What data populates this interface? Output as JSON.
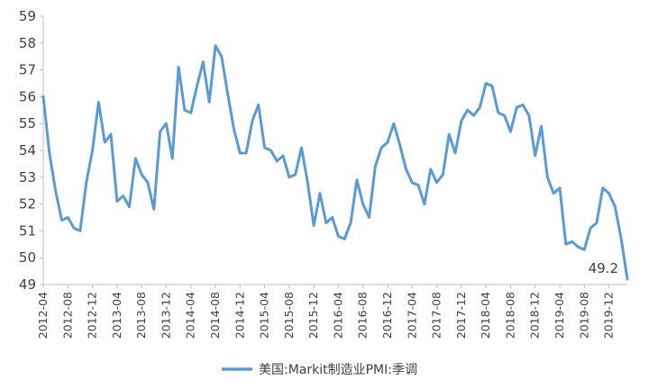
{
  "chart_data": {
    "type": "line",
    "ylim": [
      49,
      59
    ],
    "y_ticks": [
      49,
      50,
      51,
      52,
      53,
      54,
      55,
      56,
      57,
      58,
      59
    ],
    "x_tick_labels": [
      "2012-04",
      "2012-08",
      "2012-12",
      "2013-04",
      "2013-08",
      "2013-12",
      "2014-04",
      "2014-08",
      "2014-12",
      "2015-04",
      "2015-08",
      "2015-12",
      "2016-04",
      "2016-08",
      "2016-12",
      "2017-04",
      "2017-08",
      "2017-12",
      "2018-04",
      "2018-08",
      "2018-12",
      "2019-04",
      "2019-08",
      "2019-12"
    ],
    "x": [
      "2012-04",
      "2012-05",
      "2012-06",
      "2012-07",
      "2012-08",
      "2012-09",
      "2012-10",
      "2012-11",
      "2012-12",
      "2013-01",
      "2013-02",
      "2013-03",
      "2013-04",
      "2013-05",
      "2013-06",
      "2013-07",
      "2013-08",
      "2013-09",
      "2013-10",
      "2013-11",
      "2013-12",
      "2014-01",
      "2014-02",
      "2014-03",
      "2014-04",
      "2014-05",
      "2014-06",
      "2014-07",
      "2014-08",
      "2014-09",
      "2014-10",
      "2014-11",
      "2014-12",
      "2015-01",
      "2015-02",
      "2015-03",
      "2015-04",
      "2015-05",
      "2015-06",
      "2015-07",
      "2015-08",
      "2015-09",
      "2015-10",
      "2015-11",
      "2015-12",
      "2016-01",
      "2016-02",
      "2016-03",
      "2016-04",
      "2016-05",
      "2016-06",
      "2016-07",
      "2016-08",
      "2016-09",
      "2016-10",
      "2016-11",
      "2016-12",
      "2017-01",
      "2017-02",
      "2017-03",
      "2017-04",
      "2017-05",
      "2017-06",
      "2017-07",
      "2017-08",
      "2017-09",
      "2017-10",
      "2017-11",
      "2017-12",
      "2018-01",
      "2018-02",
      "2018-03",
      "2018-04",
      "2018-05",
      "2018-06",
      "2018-07",
      "2018-08",
      "2018-09",
      "2018-10",
      "2018-11",
      "2018-12",
      "2019-01",
      "2019-02",
      "2019-03",
      "2019-04",
      "2019-05",
      "2019-06",
      "2019-07",
      "2019-08",
      "2019-09",
      "2019-10",
      "2019-11",
      "2019-12",
      "2020-01",
      "2020-02",
      "2020-03"
    ],
    "series": [
      {
        "name": "美国:Markit制造业PMI:季调",
        "color": "#5B9BD5",
        "values": [
          56.0,
          53.9,
          52.5,
          51.4,
          51.5,
          51.1,
          51.0,
          52.8,
          54.0,
          55.8,
          54.3,
          54.6,
          52.1,
          52.3,
          51.9,
          53.7,
          53.1,
          52.8,
          51.8,
          54.7,
          55.0,
          53.7,
          57.1,
          55.5,
          55.4,
          56.4,
          57.3,
          55.8,
          57.9,
          57.5,
          56.1,
          54.8,
          53.9,
          53.9,
          55.1,
          55.7,
          54.1,
          54.0,
          53.6,
          53.8,
          53.0,
          53.1,
          54.1,
          52.8,
          51.2,
          52.4,
          51.3,
          51.5,
          50.8,
          50.7,
          51.3,
          52.9,
          52.0,
          51.5,
          53.4,
          54.1,
          54.3,
          55.0,
          54.2,
          53.3,
          52.8,
          52.7,
          52.0,
          53.3,
          52.8,
          53.1,
          54.6,
          53.9,
          55.1,
          55.5,
          55.3,
          55.6,
          56.5,
          56.4,
          55.4,
          55.3,
          54.7,
          55.6,
          55.7,
          55.3,
          53.8,
          54.9,
          53.0,
          52.4,
          52.6,
          50.5,
          50.6,
          50.4,
          50.3,
          51.1,
          51.3,
          52.6,
          52.4,
          51.9,
          50.7,
          49.2
        ]
      }
    ],
    "annotations": [
      {
        "text": "49.2",
        "x": "2020-03",
        "y": 49.2
      }
    ],
    "legend_position": "bottom",
    "grid": false
  }
}
